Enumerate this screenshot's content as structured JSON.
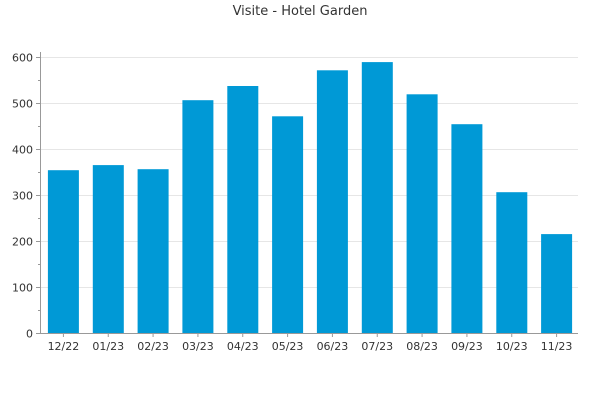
{
  "chart_data": {
    "type": "bar",
    "title": "Visite - Hotel Garden",
    "xlabel": "",
    "ylabel": "",
    "categories": [
      "12/22",
      "01/23",
      "02/23",
      "03/23",
      "04/23",
      "05/23",
      "06/23",
      "07/23",
      "08/23",
      "09/23",
      "10/23",
      "11/23"
    ],
    "values": [
      354,
      365,
      356,
      506,
      537,
      471,
      571,
      589,
      519,
      454,
      306,
      215
    ],
    "ylim": [
      0,
      600
    ],
    "yticks": [
      0,
      100,
      200,
      300,
      400,
      500,
      600
    ],
    "grid": true,
    "bar_color": "#0099d6"
  }
}
